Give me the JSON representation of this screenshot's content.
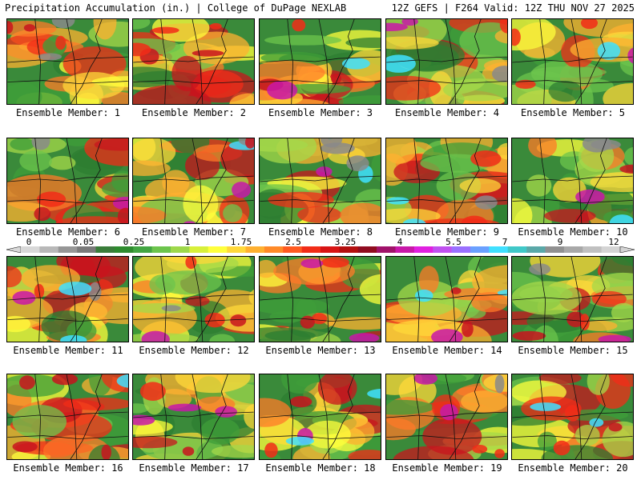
{
  "header": {
    "left": "Precipitation Accumulation (in.) | College of DuPage NEXLAB",
    "right": "12Z GEFS | F264 Valid: 12Z THU NOV 27 2025"
  },
  "colorbar": {
    "labels": [
      "0",
      "0.05",
      "0.25",
      "1",
      "1.75",
      "2.5",
      "3.25",
      "4",
      "5.5",
      "7",
      "9",
      "12"
    ],
    "colors": [
      "#d8d8d8",
      "#b8b8b8",
      "#969696",
      "#7a7a7a",
      "#3a7d3a",
      "#2e8b2e",
      "#42a542",
      "#6cc44c",
      "#9ed84a",
      "#d8f03a",
      "#ffff3c",
      "#ffd83a",
      "#ffb030",
      "#ff8a28",
      "#ff5a20",
      "#f22c18",
      "#d81414",
      "#b40f0f",
      "#900c20",
      "#a0126a",
      "#c818a8",
      "#e020e0",
      "#c050f0",
      "#9a70ff",
      "#6aa0ff",
      "#40e0ff",
      "#40c8c8",
      "#5aa8a8",
      "#909090",
      "#a8a8a8",
      "#c0c0c0",
      "#d4d4d4"
    ]
  },
  "panels": [
    {
      "label": "Ensemble Member: 1"
    },
    {
      "label": "Ensemble Member: 2"
    },
    {
      "label": "Ensemble Member: 3"
    },
    {
      "label": "Ensemble Member: 4"
    },
    {
      "label": "Ensemble Member: 5"
    },
    {
      "label": "Ensemble Member: 6"
    },
    {
      "label": "Ensemble Member: 7"
    },
    {
      "label": "Ensemble Member: 8"
    },
    {
      "label": "Ensemble Member: 9"
    },
    {
      "label": "Ensemble Member: 10"
    },
    {
      "label": "Ensemble Member: 11"
    },
    {
      "label": "Ensemble Member: 12"
    },
    {
      "label": "Ensemble Member: 13"
    },
    {
      "label": "Ensemble Member: 14"
    },
    {
      "label": "Ensemble Member: 15"
    },
    {
      "label": "Ensemble Member: 16"
    },
    {
      "label": "Ensemble Member: 17"
    },
    {
      "label": "Ensemble Member: 18"
    },
    {
      "label": "Ensemble Member: 19"
    },
    {
      "label": "Ensemble Member: 20"
    }
  ]
}
